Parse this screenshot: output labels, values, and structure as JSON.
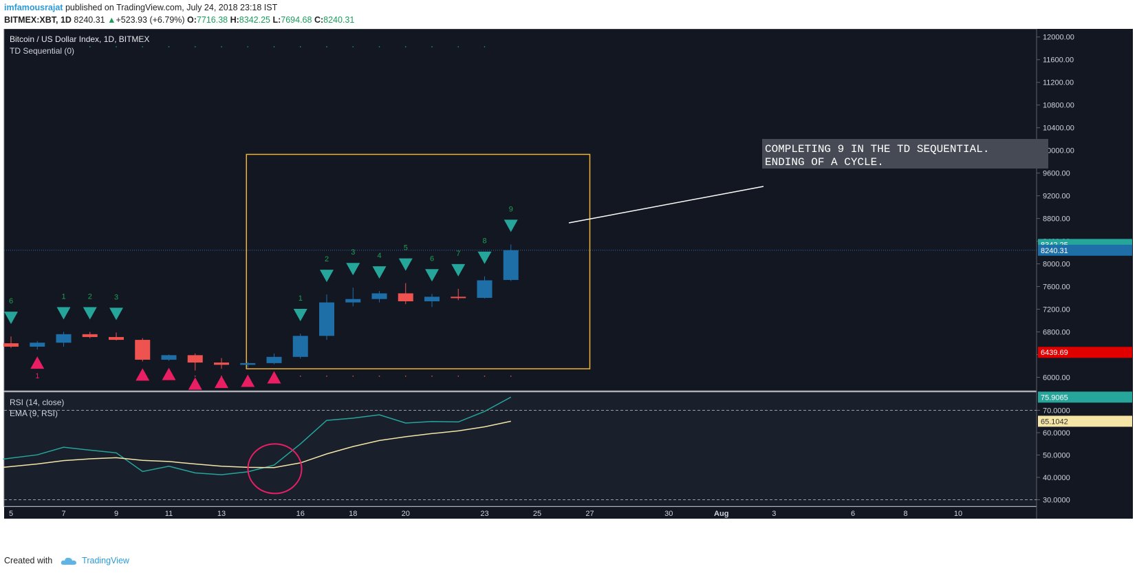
{
  "header": {
    "author": "imfamousrajat",
    "published_text": "published on TradingView.com, July 24, 2018 23:18 IST",
    "symbol": "BITMEX:XBT, 1D",
    "last": "8240.31",
    "change": "+523.93 (+6.79%)",
    "o_label": "O:",
    "o_value": "7716.38",
    "h_label": "H:",
    "h_value": "8342.25",
    "l_label": "L:",
    "l_value": "7694.68",
    "c_label": "C:",
    "c_value": "8240.31"
  },
  "footer": {
    "created_with": "Created with",
    "brand": "TradingView"
  },
  "chart_data": [
    {
      "type": "candlestick",
      "title": "Bitcoin / US Dollar Index, 1D, BITMEX",
      "indicator_label": "TD Sequential (0)",
      "ylim": [
        5850,
        12100
      ],
      "y_ticks": [
        "6000.00",
        "6400.00",
        "6800.00",
        "7200.00",
        "7600.00",
        "8000.00",
        "8400.00",
        "8800.00",
        "9200.00",
        "9600.00",
        "10000.00",
        "10400.00",
        "10800.00",
        "11200.00",
        "11600.00",
        "12000.00"
      ],
      "x_ticks": [
        {
          "label": "5",
          "day": 5
        },
        {
          "label": "7",
          "day": 7
        },
        {
          "label": "9",
          "day": 9
        },
        {
          "label": "11",
          "day": 11
        },
        {
          "label": "13",
          "day": 13
        },
        {
          "label": "16",
          "day": 16
        },
        {
          "label": "18",
          "day": 18
        },
        {
          "label": "20",
          "day": 20
        },
        {
          "label": "23",
          "day": 23
        },
        {
          "label": "25",
          "day": 25
        },
        {
          "label": "27",
          "day": 27
        },
        {
          "label": "30",
          "day": 30
        },
        {
          "label": "Aug",
          "day": 32
        },
        {
          "label": "3",
          "day": 34
        },
        {
          "label": "6",
          "day": 37
        },
        {
          "label": "8",
          "day": 39
        },
        {
          "label": "10",
          "day": 41
        }
      ],
      "candles": [
        {
          "day": 5,
          "o": 6600,
          "h": 6720,
          "l": 6520,
          "c": 6540
        },
        {
          "day": 6,
          "o": 6540,
          "h": 6640,
          "l": 6490,
          "c": 6610
        },
        {
          "day": 7,
          "o": 6610,
          "h": 6800,
          "l": 6540,
          "c": 6760
        },
        {
          "day": 8,
          "o": 6760,
          "h": 6800,
          "l": 6690,
          "c": 6710
        },
        {
          "day": 9,
          "o": 6710,
          "h": 6790,
          "l": 6650,
          "c": 6660
        },
        {
          "day": 10,
          "o": 6660,
          "h": 6690,
          "l": 6280,
          "c": 6310
        },
        {
          "day": 11,
          "o": 6310,
          "h": 6400,
          "l": 6290,
          "c": 6390
        },
        {
          "day": 12,
          "o": 6390,
          "h": 6420,
          "l": 6120,
          "c": 6260
        },
        {
          "day": 13,
          "o": 6260,
          "h": 6340,
          "l": 6150,
          "c": 6220
        },
        {
          "day": 14,
          "o": 6220,
          "h": 6270,
          "l": 6170,
          "c": 6250
        },
        {
          "day": 15,
          "o": 6250,
          "h": 6420,
          "l": 6230,
          "c": 6360
        },
        {
          "day": 16,
          "o": 6360,
          "h": 6770,
          "l": 6330,
          "c": 6730
        },
        {
          "day": 17,
          "o": 6730,
          "h": 7460,
          "l": 6660,
          "c": 7320
        },
        {
          "day": 18,
          "o": 7320,
          "h": 7580,
          "l": 7250,
          "c": 7380
        },
        {
          "day": 19,
          "o": 7380,
          "h": 7520,
          "l": 7320,
          "c": 7480
        },
        {
          "day": 20,
          "o": 7480,
          "h": 7660,
          "l": 7290,
          "c": 7340
        },
        {
          "day": 21,
          "o": 7340,
          "h": 7470,
          "l": 7240,
          "c": 7420
        },
        {
          "day": 22,
          "o": 7420,
          "h": 7560,
          "l": 7360,
          "c": 7400
        },
        {
          "day": 23,
          "o": 7400,
          "h": 7780,
          "l": 7390,
          "c": 7710
        },
        {
          "day": 24,
          "o": 7716.38,
          "h": 8342.25,
          "l": 7694.68,
          "c": 8240.31
        }
      ],
      "td_sell": [
        {
          "day": 5,
          "label": "6"
        },
        {
          "day": 7,
          "label": "1"
        },
        {
          "day": 8,
          "label": "2"
        },
        {
          "day": 9,
          "label": "3"
        },
        {
          "day": 16,
          "label": "1"
        },
        {
          "day": 17,
          "label": "2"
        },
        {
          "day": 18,
          "label": "3"
        },
        {
          "day": 19,
          "label": "4"
        },
        {
          "day": 20,
          "label": "5"
        },
        {
          "day": 21,
          "label": "6"
        },
        {
          "day": 22,
          "label": "7"
        },
        {
          "day": 23,
          "label": "8"
        },
        {
          "day": 24,
          "label": "9"
        }
      ],
      "td_buy": [
        {
          "day": 6,
          "label": "1"
        },
        {
          "day": 10,
          "label": ""
        },
        {
          "day": 11,
          "label": ""
        },
        {
          "day": 12,
          "label": ""
        },
        {
          "day": 13,
          "label": ""
        },
        {
          "day": 14,
          "label": ""
        },
        {
          "day": 15,
          "label": ""
        }
      ],
      "price_labels": [
        {
          "value": 8342.25,
          "text": "8342.25",
          "color": "#26a69a"
        },
        {
          "value": 8240.31,
          "text": "8240.31",
          "color": "#1e6fa8"
        },
        {
          "value": 6439.69,
          "text": "6439.69",
          "color": "#e00000"
        }
      ],
      "current_price": 8240.31,
      "annotation": {
        "lines": [
          "COMPLETING 9 IN THE TD SEQUENTIAL.",
          "ENDING OF A CYCLE."
        ],
        "box": {
          "from_day": 14,
          "to_day": 27,
          "from_price": 6150,
          "to_price": 9930
        }
      }
    },
    {
      "type": "line",
      "series": [
        {
          "name": "RSI (14, close)",
          "color": "#26a69a",
          "last_text": "75.9065",
          "points": [
            [
              4.7,
              48.2
            ],
            [
              6,
              50.1
            ],
            [
              7,
              53.5
            ],
            [
              8,
              52.2
            ],
            [
              9,
              51.0
            ],
            [
              10,
              42.6
            ],
            [
              11,
              45.0
            ],
            [
              12,
              42.0
            ],
            [
              13,
              41.2
            ],
            [
              14,
              42.5
            ],
            [
              15,
              45.5
            ],
            [
              16,
              55.0
            ],
            [
              17,
              65.5
            ],
            [
              18,
              66.5
            ],
            [
              19,
              68.0
            ],
            [
              20,
              64.3
            ],
            [
              21,
              65.0
            ],
            [
              22,
              64.8
            ],
            [
              23,
              69.5
            ],
            [
              24,
              75.9065
            ]
          ]
        },
        {
          "name": "EMA (9, RSI)",
          "color": "#f5e6a8",
          "last_text": "65.1042",
          "points": [
            [
              4.7,
              44.5
            ],
            [
              6,
              46.0
            ],
            [
              7,
              47.5
            ],
            [
              8,
              48.3
            ],
            [
              9,
              48.8
            ],
            [
              10,
              47.6
            ],
            [
              11,
              47.1
            ],
            [
              12,
              46.0
            ],
            [
              13,
              45.0
            ],
            [
              14,
              44.5
            ],
            [
              15,
              44.4
            ],
            [
              16,
              46.5
            ],
            [
              17,
              50.5
            ],
            [
              18,
              53.8
            ],
            [
              19,
              56.5
            ],
            [
              20,
              58.2
            ],
            [
              21,
              59.6
            ],
            [
              22,
              60.8
            ],
            [
              23,
              62.6
            ],
            [
              24,
              65.1042
            ]
          ]
        }
      ],
      "ylim": [
        28,
        78
      ],
      "y_ticks": [
        "30.0000",
        "40.0000",
        "50.0000",
        "60.0000",
        "70.0000"
      ],
      "bands": [
        70,
        30
      ],
      "highlight_circle": {
        "day": 15,
        "value": 44.5
      }
    }
  ],
  "colors": {
    "bg": "#131722",
    "grid": "#1f2533",
    "up": "#1e6fa8",
    "down": "#ef5350",
    "sell_arrow": "#26a69a",
    "buy_arrow": "#e91e63",
    "box": "#f0b435",
    "axis_text": "#cfd3dc"
  }
}
